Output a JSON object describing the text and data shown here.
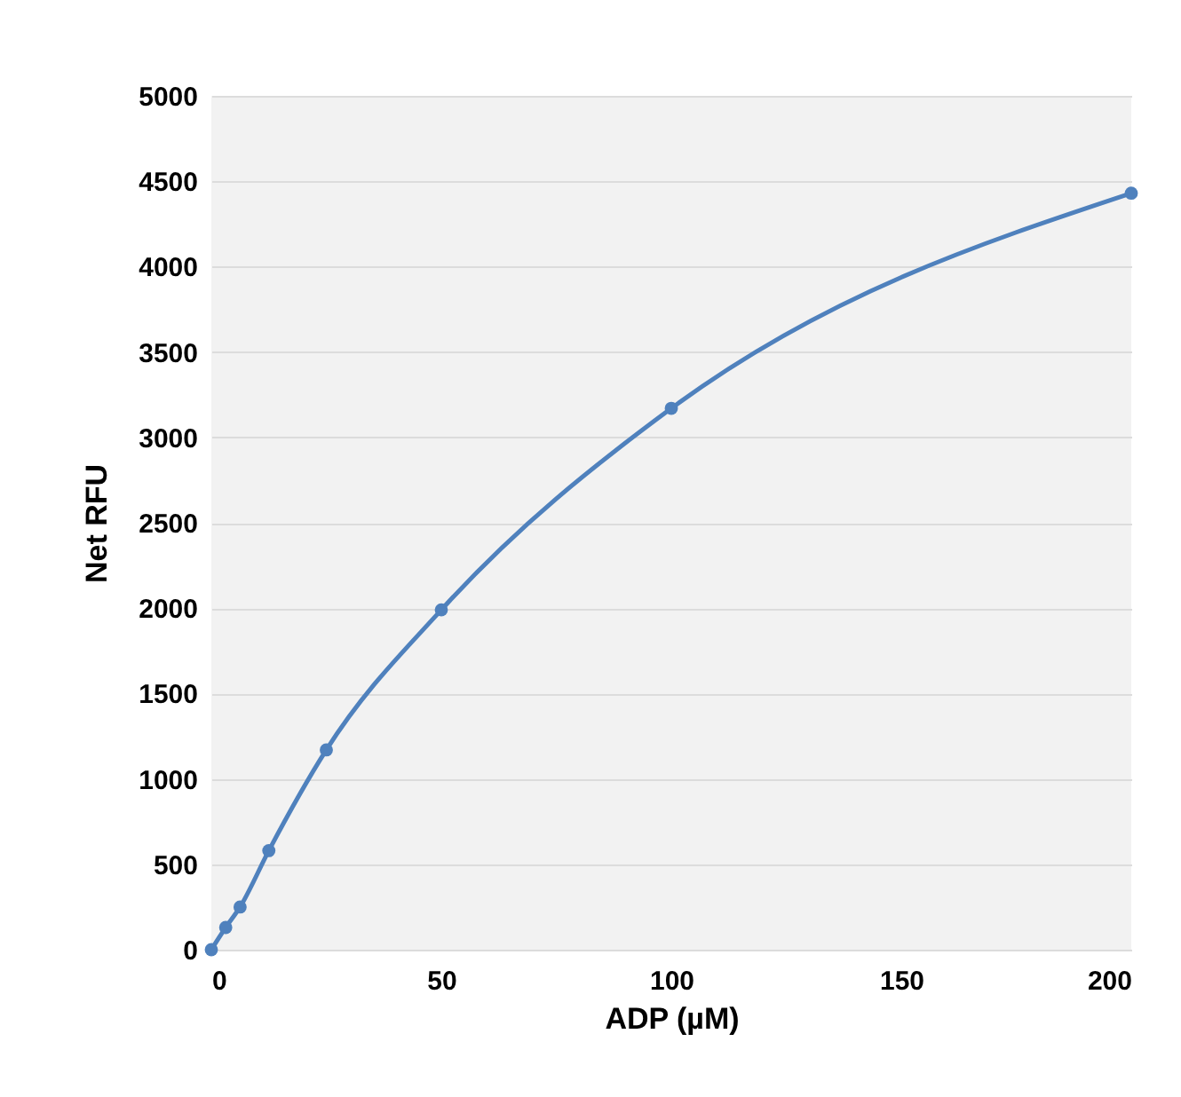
{
  "chart_data": {
    "type": "line",
    "xlabel": "ADP (µM)",
    "ylabel": "Net RFU",
    "x": [
      0,
      3.125,
      6.25,
      12.5,
      25,
      50,
      100,
      200
    ],
    "series": [
      {
        "color": "#4f81bd",
        "values": [
          0,
          130,
          250,
          580,
          1170,
          1990,
          3170,
          4430
        ]
      }
    ],
    "xlim": [
      0,
      200
    ],
    "xticks": [
      0,
      50,
      100,
      150,
      200
    ],
    "ylim": [
      0,
      5000
    ],
    "yticks": [
      0,
      500,
      1000,
      1500,
      2000,
      2500,
      3000,
      3500,
      4000,
      4500,
      5000
    ],
    "grid": "y",
    "marker": "circle",
    "line_style": "solid"
  }
}
